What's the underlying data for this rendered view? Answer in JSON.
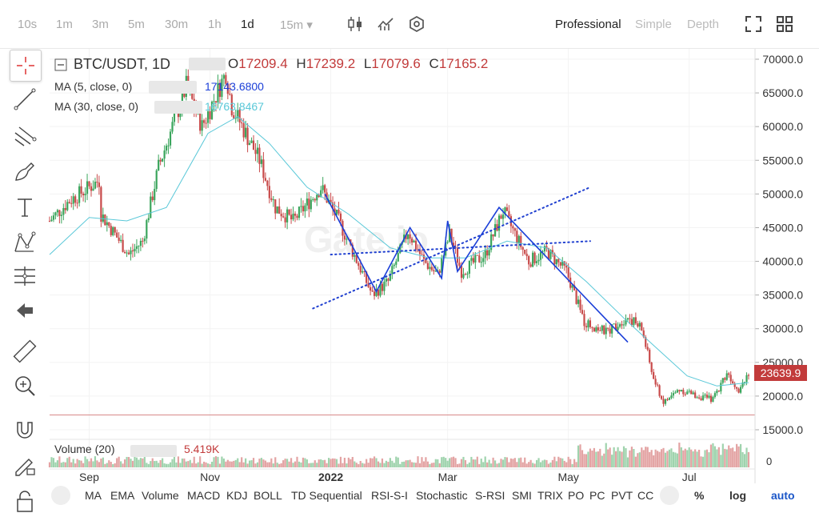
{
  "toolbar": {
    "timeframes": [
      "10s",
      "1m",
      "3m",
      "5m",
      "30m",
      "1h",
      "1d",
      "15m ▾"
    ],
    "active_timeframe": "1d",
    "modes": [
      "Professional",
      "Simple",
      "Depth"
    ],
    "active_mode": "Professional",
    "icons": [
      "candles-icon",
      "indicator-icon",
      "settings-icon",
      "fullscreen-icon",
      "layout-icon"
    ]
  },
  "left_tools": [
    "crosshair-icon",
    "trendline-icon",
    "fib-icon",
    "brush-icon",
    "text-icon",
    "pattern-icon",
    "measure-icon",
    "back-arrow-icon",
    "ruler-icon",
    "zoom-icon",
    "magnet-icon",
    "lock-draw-icon",
    "lock-icon"
  ],
  "legend": {
    "symbol": "BTC/USDT, 1D",
    "o_label": "O",
    "o": "17209.4",
    "h_label": "H",
    "h": "17239.2",
    "l_label": "L",
    "l": "17079.6",
    "c_label": "C",
    "c": "17165.2",
    "ma5_label": "MA (5, close, 0)",
    "ma5_value": "17143.6800",
    "ma5_color": "#1b3fd8",
    "ma30_label": "MA (30, close, 0)",
    "ma30_value": "16763.8467",
    "ma30_color": "#5ac8d8",
    "volume_label": "Volume (20)",
    "volume_value": "5.419K"
  },
  "price_tag": "23639.9",
  "bottom_indicators": [
    "MA",
    "EMA",
    "Volume",
    "MACD",
    "KDJ",
    "BOLL",
    "TD Sequential",
    "RSI-S-I",
    "Stochastic",
    "S-RSI",
    "SMI",
    "TRIX",
    "PO",
    "PC",
    "PVT",
    "CC",
    "%",
    "log",
    "auto"
  ],
  "chart_data": {
    "type": "candlestick",
    "y_ticks": [
      "70000.0",
      "65000.0",
      "60000.0",
      "55000.0",
      "50000.0",
      "45000.0",
      "40000.0",
      "35000.0",
      "30000.0",
      "25000.0",
      "20000.0",
      "15000.0"
    ],
    "ylim": [
      15000,
      72000
    ],
    "volume_tick": "0",
    "x_ticks": [
      "Sep",
      "Nov",
      "2022",
      "Mar",
      "May",
      "Jul"
    ],
    "x_tick_dates": [
      "2021-09-01",
      "2021-11-01",
      "2022-01-01",
      "2022-03-01",
      "2022-05-01",
      "2022-07-01"
    ],
    "date_range": [
      "2021-08-12",
      "2022-07-31"
    ],
    "price_path": [
      [
        "2021-08-12",
        46000
      ],
      [
        "2021-08-22",
        49000
      ],
      [
        "2021-09-06",
        52000
      ],
      [
        "2021-09-07",
        47000
      ],
      [
        "2021-09-21",
        41000
      ],
      [
        "2021-09-28",
        43000
      ],
      [
        "2021-10-06",
        54000
      ],
      [
        "2021-10-20",
        66000
      ],
      [
        "2021-10-28",
        60000
      ],
      [
        "2021-11-09",
        68000
      ],
      [
        "2021-11-12",
        63000
      ],
      [
        "2021-11-26",
        55000
      ],
      [
        "2021-12-04",
        48000
      ],
      [
        "2021-12-13",
        46000
      ],
      [
        "2021-12-27",
        51000
      ],
      [
        "2022-01-05",
        46000
      ],
      [
        "2022-01-22",
        35000
      ],
      [
        "2022-01-30",
        37000
      ],
      [
        "2022-02-09",
        44500
      ],
      [
        "2022-02-17",
        40000
      ],
      [
        "2022-02-24",
        38000
      ],
      [
        "2022-03-02",
        44000
      ],
      [
        "2022-03-08",
        38500
      ],
      [
        "2022-03-20",
        41000
      ],
      [
        "2022-03-29",
        47500
      ],
      [
        "2022-04-11",
        40000
      ],
      [
        "2022-04-20",
        41500
      ],
      [
        "2022-04-30",
        38500
      ],
      [
        "2022-05-09",
        31000
      ],
      [
        "2022-05-20",
        29500
      ],
      [
        "2022-05-31",
        31800
      ],
      [
        "2022-06-07",
        30000
      ],
      [
        "2022-06-13",
        22500
      ],
      [
        "2022-06-18",
        19000
      ],
      [
        "2022-06-26",
        21000
      ],
      [
        "2022-07-05",
        20000
      ],
      [
        "2022-07-13",
        19500
      ],
      [
        "2022-07-20",
        23500
      ],
      [
        "2022-07-26",
        21000
      ],
      [
        "2022-07-31",
        23600
      ]
    ],
    "ma30_path": [
      [
        "2021-08-12",
        41000
      ],
      [
        "2021-09-01",
        46500
      ],
      [
        "2021-09-20",
        46000
      ],
      [
        "2021-10-10",
        48000
      ],
      [
        "2021-10-31",
        59000
      ],
      [
        "2021-11-15",
        61500
      ],
      [
        "2021-12-01",
        57500
      ],
      [
        "2021-12-20",
        51000
      ],
      [
        "2022-01-10",
        47000
      ],
      [
        "2022-01-31",
        42000
      ],
      [
        "2022-02-20",
        40500
      ],
      [
        "2022-03-10",
        40500
      ],
      [
        "2022-03-31",
        43000
      ],
      [
        "2022-04-20",
        42000
      ],
      [
        "2022-05-10",
        37000
      ],
      [
        "2022-05-31",
        31000
      ],
      [
        "2022-06-15",
        27000
      ],
      [
        "2022-06-30",
        23000
      ],
      [
        "2022-07-15",
        21500
      ],
      [
        "2022-07-31",
        22000
      ]
    ],
    "annotations": {
      "channel_upper": [
        [
          "2022-01-01",
          41000
        ],
        [
          "2022-05-12",
          43000
        ]
      ],
      "channel_lower": [
        [
          "2021-12-23",
          33000
        ],
        [
          "2022-05-12",
          51000
        ]
      ],
      "zigzag": [
        [
          "2021-12-29",
          50000
        ],
        [
          "2022-01-24",
          35500
        ],
        [
          "2022-02-10",
          45000
        ],
        [
          "2022-02-26",
          37500
        ],
        [
          "2022-03-01",
          46000
        ],
        [
          "2022-03-06",
          38500
        ],
        [
          "2022-03-27",
          48000
        ],
        [
          "2022-05-31",
          28000
        ]
      ],
      "baseline_price": 17200
    }
  }
}
